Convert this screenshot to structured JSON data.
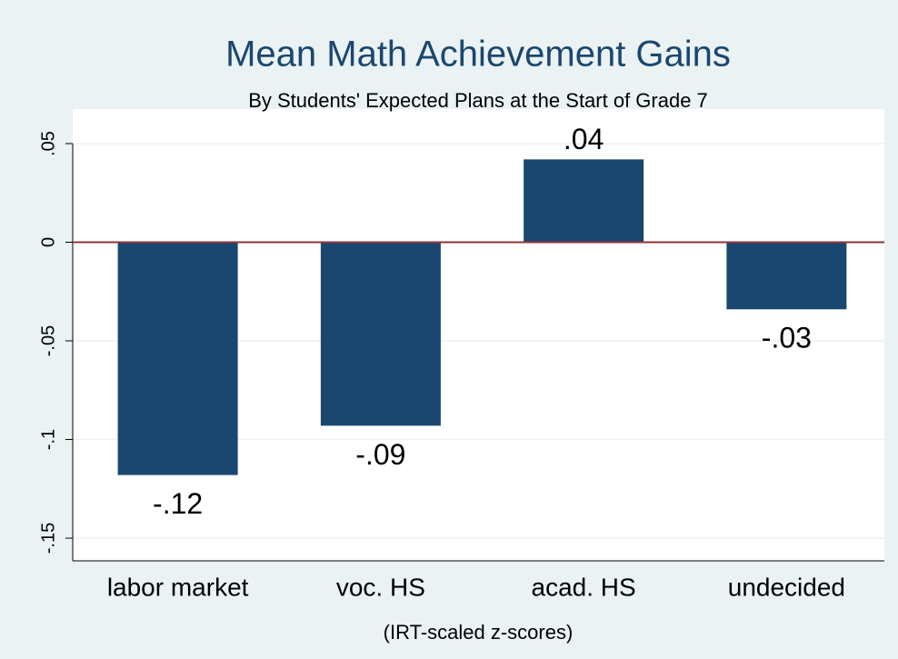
{
  "chart_data": {
    "type": "bar",
    "title": "Mean Math Achievement Gains",
    "subtitle": "By Students' Expected Plans at the Start of Grade 7",
    "x_label": "(IRT-scaled z-scores)",
    "categories": [
      "labor market",
      "voc. HS",
      "acad. HS",
      "undecided"
    ],
    "values": [
      -0.118,
      -0.093,
      0.042,
      -0.034
    ],
    "value_labels": [
      "-.12",
      "-.09",
      ".04",
      "-.03"
    ],
    "color": "#1a476f",
    "ylim": [
      -0.1615,
      0.0675
    ],
    "yticks": [
      {
        "value": -0.15,
        "label": "-.15"
      },
      {
        "value": -0.1,
        "label": "-.1"
      },
      {
        "value": -0.05,
        "label": "-.05"
      },
      0,
      {
        "value": 0.05,
        "label": ".05"
      }
    ],
    "grid": true
  }
}
